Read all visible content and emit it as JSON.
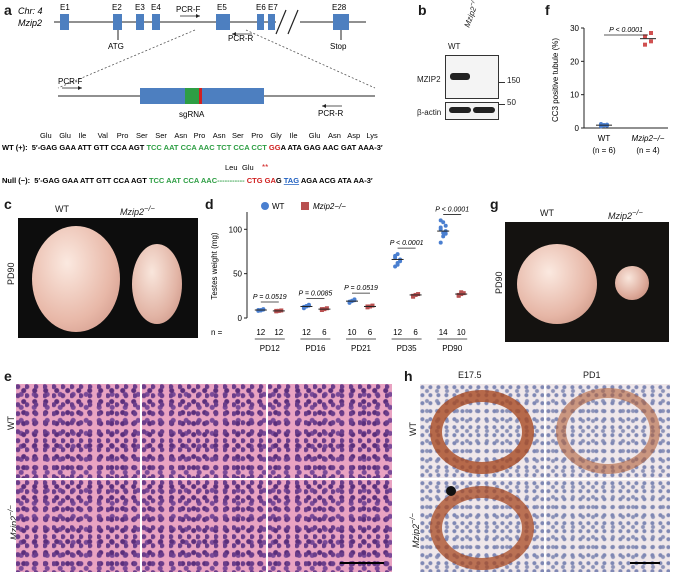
{
  "panel_letters": [
    "a",
    "b",
    "c",
    "d",
    "e",
    "f",
    "g",
    "h"
  ],
  "panel_a": {
    "locus_line1": "Chr: 4",
    "locus_line2": "Mzip2",
    "exons": [
      "E1",
      "E2",
      "E3",
      "E4",
      "E5",
      "E6",
      "E7",
      "E28"
    ],
    "atg": "ATG",
    "stop": "Stop",
    "pcr_f": "PCR-F",
    "pcr_r": "PCR-R",
    "sgrna": "sgRNA",
    "wt_aa": [
      "Glu",
      "Glu",
      "Ile",
      "Val",
      "Pro",
      "Ser",
      "Ser",
      "Asn",
      "Pro",
      "Asn",
      "Ser",
      "Pro",
      "Gly",
      "Ile",
      "Glu",
      "Asn",
      "Asp",
      "Lys"
    ],
    "wt_label": "WT (+):",
    "wt_seq_black1": "5′-GAG GAA ATT GTT CCA AGT ",
    "wt_seq_green": "TCC AAT CCA AAC TCT CCA CCT",
    "wt_seq_red": " GG",
    "wt_seq_black2": "A ATA GAG AAC GAT AAA-3′",
    "null_aa_a": "Leu",
    "null_aa_b": "Glu",
    "null_stars": "**",
    "null_label": "Null (−):",
    "null_seq_black1": "5′-GAG GAA ATT GTT CCA AGT ",
    "null_seq_green": "TCC AAT CCA AAC",
    "null_seq_dash": "-----------",
    "null_seq_red": " CTG GA",
    "null_seq_black2": "G ",
    "null_seq_tag": "TAG",
    "null_seq_black3": " AGA ACG ATA AA-3′"
  },
  "panel_b": {
    "lanes": [
      "WT",
      "Mzip2"
    ],
    "lane_sup": "−/−",
    "rows": [
      "MZIP2",
      "β-actin"
    ],
    "markers": [
      "150",
      "50"
    ]
  },
  "panel_c": {
    "wt": "WT",
    "ko": "Mzip2",
    "ko_sup": "−/−",
    "side": "PD90"
  },
  "panel_g": {
    "wt": "WT",
    "ko": "Mzip2",
    "ko_sup": "−/−",
    "side": "PD90"
  },
  "panel_e": {
    "row1": "WT",
    "row2": "Mzip2",
    "row2_sup": "−/−"
  },
  "panel_h": {
    "col1": "E17.5",
    "col2": "PD1",
    "row1": "WT",
    "row2": "Mzip2",
    "row2_sup": "−/−"
  },
  "chart_data": [
    {
      "id": "d",
      "type": "scatter",
      "ylabel": "Testes weight (mg)",
      "ylim": [
        0,
        115
      ],
      "yticks": [
        0,
        50,
        100
      ],
      "legend": [
        "WT",
        "Mzip2−/−"
      ],
      "n_prefix": "n =",
      "groups": [
        {
          "label": "PD12",
          "n_wt": "12",
          "n_ko": "12",
          "wt_mean": 9,
          "ko_mean": 8,
          "p": "P = 0.0519",
          "wt_pts": [
            8,
            9,
            10,
            9,
            8.5,
            9.5
          ],
          "ko_pts": [
            7.5,
            8,
            8.5,
            8
          ]
        },
        {
          "label": "PD16",
          "n_wt": "12",
          "n_ko": "6",
          "wt_mean": 13,
          "ko_mean": 10,
          "p": "P = 0.0085",
          "wt_pts": [
            11,
            13,
            14,
            12.5,
            13.5,
            15
          ],
          "ko_pts": [
            9,
            10,
            11,
            10
          ]
        },
        {
          "label": "PD21",
          "n_wt": "10",
          "n_ko": "6",
          "wt_mean": 19,
          "ko_mean": 13,
          "p": "P = 0.0519",
          "wt_pts": [
            17,
            19,
            20,
            18.5,
            19.5,
            21
          ],
          "ko_pts": [
            12,
            13,
            14,
            13
          ]
        },
        {
          "label": "PD35",
          "n_wt": "12",
          "n_ko": "6",
          "wt_mean": 66,
          "ko_mean": 26,
          "p": "P < 0.0001",
          "wt_pts": [
            58,
            62,
            66,
            70,
            72,
            64,
            68,
            60
          ],
          "ko_pts": [
            24,
            26,
            27,
            25
          ]
        },
        {
          "label": "PD90",
          "n_wt": "14",
          "n_ko": "10",
          "wt_mean": 98,
          "ko_mean": 27,
          "p": "P < 0.0001",
          "wt_pts": [
            85,
            92,
            98,
            102,
            108,
            95,
            100,
            96,
            104,
            110
          ],
          "ko_pts": [
            25,
            27,
            28,
            26,
            29
          ]
        }
      ]
    },
    {
      "id": "f",
      "type": "scatter",
      "ylabel": "CC3 positive tubule (%)",
      "ylim": [
        0,
        30
      ],
      "yticks": [
        0,
        10,
        20,
        30
      ],
      "p": "P < 0.0001",
      "categories": [
        "WT",
        "Mzip2−/−"
      ],
      "n": [
        "(n = 6)",
        "(n = 4)"
      ],
      "wt_pts": [
        0.5,
        0.8,
        1.0,
        1.2,
        0.9,
        0.7
      ],
      "ko_pts": [
        25,
        26,
        27.5,
        28.5
      ],
      "wt_mean": 0.85,
      "ko_mean": 26.8
    }
  ]
}
